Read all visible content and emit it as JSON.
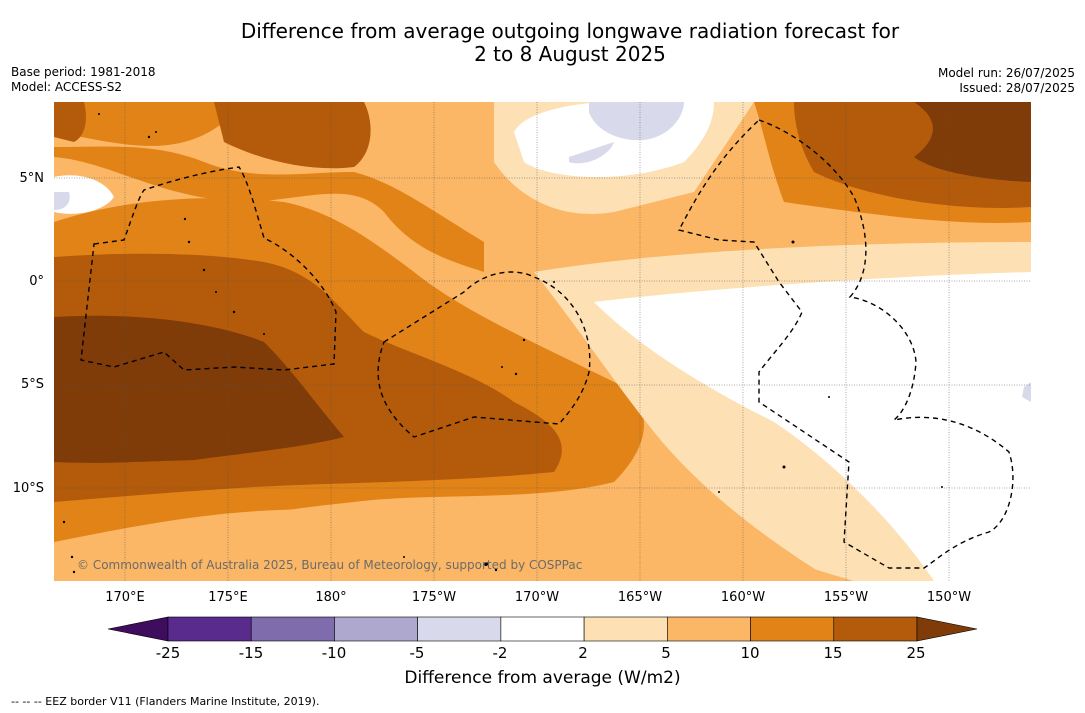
{
  "title_line1": "Difference from average outgoing longwave radiation forecast for",
  "title_line2": "2 to 8 August 2025",
  "base_period": "Base period: 1981-2018",
  "model": "Model: ACCESS-S2",
  "model_run": "Model run: 26/07/2025",
  "issued": "Issued: 28/07/2025",
  "lat_labels": [
    "5°N",
    "0°",
    "5°S",
    "10°S"
  ],
  "lon_labels": [
    "170°E",
    "175°E",
    "180°",
    "175°W",
    "170°W",
    "165°W",
    "160°W",
    "155°W",
    "150°W"
  ],
  "copyright": "© Commonwealth of Australia 2025, Bureau of Meteorology, supported by COSPPac",
  "colorbar": {
    "ticks": [
      "-25",
      "-15",
      "-10",
      "-5",
      "-2",
      "2",
      "5",
      "10",
      "15",
      "25"
    ],
    "label": "Difference from average (W/m2)",
    "colors": [
      "#3f0d5e",
      "#582b8d",
      "#7f6cac",
      "#aea8cf",
      "#d8d9ea",
      "#ffffff",
      "#fde0b4",
      "#fbb765",
      "#e28318",
      "#b35b0a",
      "#7f3b08"
    ]
  },
  "legend_note": "--  --  -- EEZ border V11 (Flanders Marine Institute, 2019)."
}
